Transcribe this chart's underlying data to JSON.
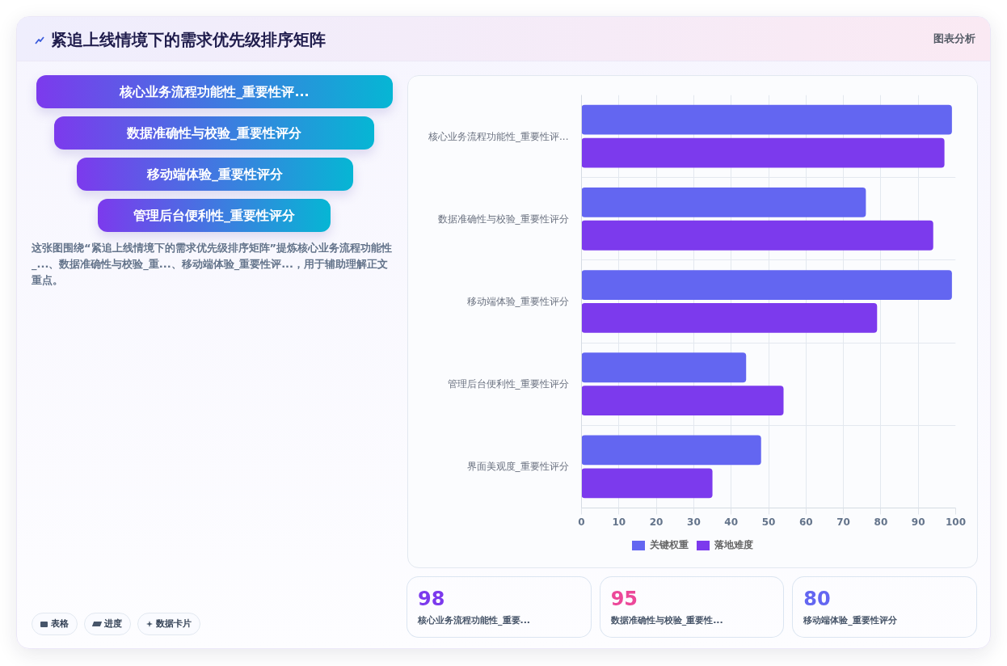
{
  "chart_data": [
    {
      "type": "other",
      "title": "紧追上线情境下的需求优先级排序矩阵",
      "annotations": [
        "图表分析"
      ]
    },
    {
      "type": "bar",
      "orientation": "horizontal",
      "categories": [
        "核心业务流程功能性_重要性评...",
        "数据准确性与校验_重要性评分",
        "移动端体验_重要性评分",
        "管理后台便利性_重要性评分",
        "界面美观度_重要性评分"
      ],
      "series": [
        {
          "name": "关键权重",
          "color": "#6366f1",
          "values": [
            99,
            76,
            99,
            44,
            48
          ]
        },
        {
          "name": "落地难度",
          "color": "#7c3aed",
          "values": [
            97,
            94,
            79,
            54,
            35
          ]
        }
      ],
      "xlim": [
        0,
        100
      ],
      "xticks": [
        0,
        10,
        20,
        30,
        40,
        50,
        60,
        70,
        80,
        90,
        100
      ],
      "grid": true,
      "legend": "bottom"
    },
    {
      "type": "other",
      "categories": [
        "核心业务流程功能性_重要性评...",
        "数据准确性与校验_重要性评分",
        "移动端体验_重要性评分",
        "管理后台便利性_重要性评分"
      ],
      "annotations": [
        "这张图围绕“紧追上线情境下的需求优先级排序矩阵”提炼核心业务流程功能性_...、数据准确性与校验_重...、移动端体验_重要性评...，用于辅助理解正文重点。",
        "表格",
        "进度",
        "数据卡片"
      ]
    },
    {
      "type": "other",
      "categories": [
        "核心业务流程功能性_重要...",
        "数据准确性与校验_重要性...",
        "移动端体验_重要性评分"
      ],
      "values": [
        98,
        95,
        80
      ],
      "colors": [
        "#7c3aed",
        "#ec4899",
        "#6366f1"
      ],
      "data_labels": true
    }
  ]
}
